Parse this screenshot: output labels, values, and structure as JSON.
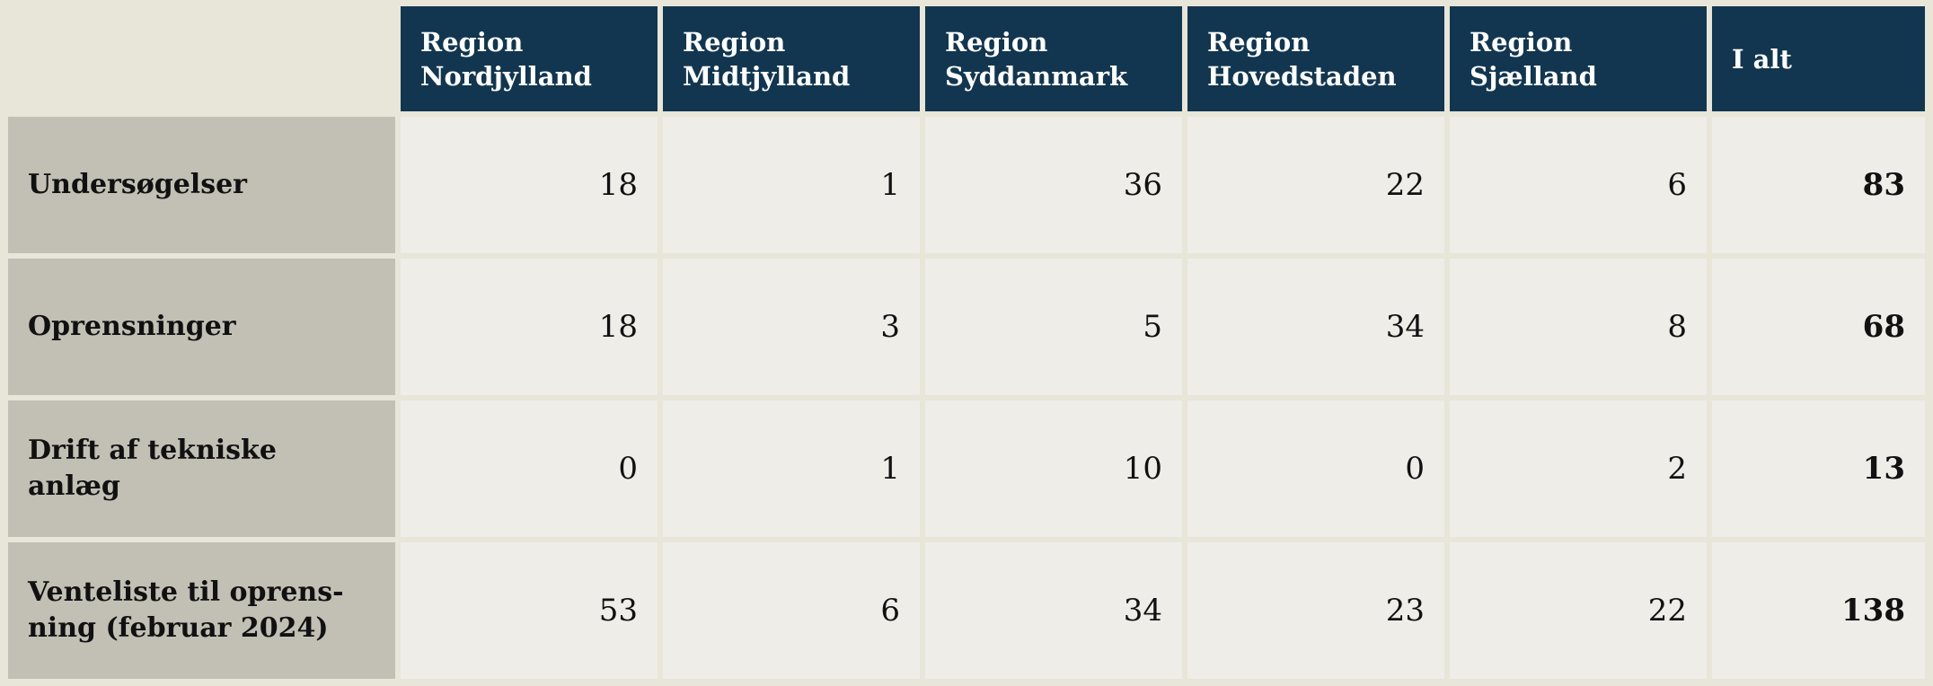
{
  "table": {
    "columns": [
      "Region\nNordjylland",
      "Region\nMidtjylland",
      "Region\nSyddanmark",
      "Region\nHovedstaden",
      "Region\nSjælland",
      "I alt"
    ],
    "rows": [
      {
        "label": "Undersøgelser",
        "values": [
          18,
          1,
          36,
          22,
          6,
          83
        ]
      },
      {
        "label": "Oprensninger",
        "values": [
          18,
          3,
          5,
          34,
          8,
          68
        ]
      },
      {
        "label": "Drift af tekniske anlæg",
        "values": [
          0,
          1,
          10,
          0,
          2,
          13
        ]
      },
      {
        "label": "Venteliste til oprens-\nning (februar 2024)",
        "values": [
          53,
          6,
          34,
          23,
          22,
          138
        ]
      }
    ]
  }
}
